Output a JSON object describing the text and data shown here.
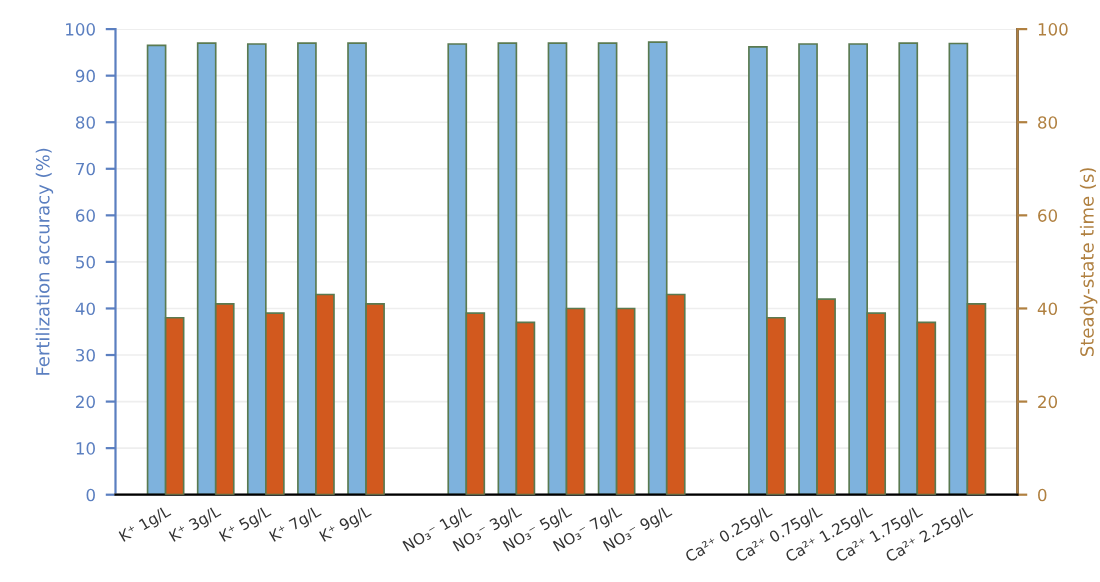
{
  "chart_data": {
    "type": "bar",
    "ylabel": "Fertilization accuracy (%)",
    "y2label": "Steady-state time (s)",
    "categories": [
      "K⁺ 1g/L",
      "K⁺ 3g/L",
      "K⁺ 5g/L",
      "K⁺ 7g/L",
      "K⁺ 9g/L",
      null,
      "NO₃⁻ 1g/L",
      "NO₃⁻ 3g/L",
      "NO₃⁻ 5g/L",
      "NO₃⁻ 7g/L",
      "NO₃⁻ 9g/L",
      null,
      "Ca²⁺ 0.25g/L",
      "Ca²⁺ 0.75g/L",
      "Ca²⁺ 1.25g/L",
      "Ca²⁺ 1.75g/L",
      "Ca²⁺ 2.25g/L"
    ],
    "series": [
      {
        "color": "#7eb2dd",
        "values": [
          96.5,
          97,
          96.8,
          97,
          97,
          null,
          96.8,
          97,
          97,
          97,
          97.2,
          null,
          96.2,
          96.8,
          96.8,
          97,
          96.9
        ]
      },
      {
        "color": "#d2591e",
        "axis": "y2",
        "values": [
          38,
          41,
          39,
          43,
          41,
          null,
          39,
          37,
          40,
          40,
          43,
          null,
          38,
          42,
          39,
          37,
          41
        ]
      }
    ],
    "ylim": [
      0,
      100
    ],
    "yticks": [
      0,
      10,
      20,
      30,
      40,
      50,
      60,
      70,
      80,
      90,
      100
    ],
    "y2lim": [
      0,
      100
    ],
    "y2ticks": [
      0,
      20,
      40,
      60,
      80,
      100
    ],
    "grid": "y",
    "legend": false
  }
}
